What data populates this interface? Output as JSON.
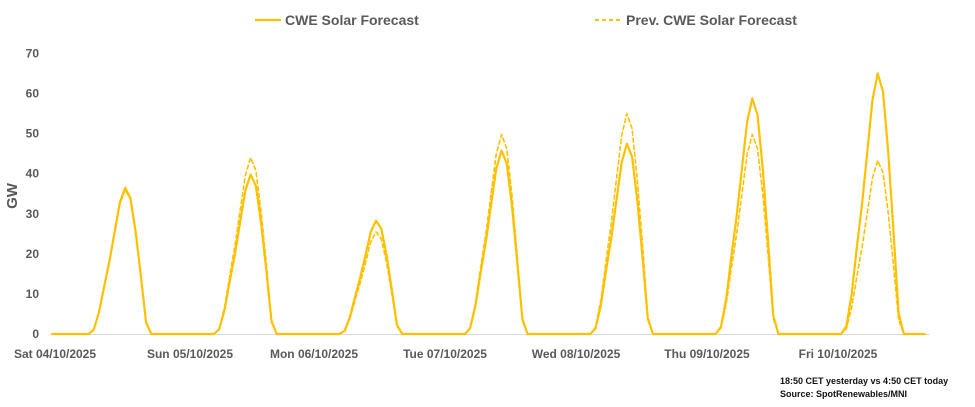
{
  "chart_data": {
    "type": "line",
    "title": "",
    "xlabel": "",
    "ylabel": "GW",
    "ylim": [
      0,
      70
    ],
    "yticks": [
      0,
      10,
      20,
      30,
      40,
      50,
      60,
      70
    ],
    "grid": false,
    "legend_position": "top",
    "x_resolution": "hourly",
    "x_tick_labels": [
      "Sat 04/10/2025",
      "Sun 05/10/2025",
      "Mon 06/10/2025",
      "Tue 07/10/2025",
      "Wed 08/10/2025",
      "Thu 09/10/2025",
      "Fri 10/10/2025"
    ],
    "series": [
      {
        "name": "CWE Solar Forecast",
        "color": "#FFC000",
        "style": "solid",
        "values": [
          0,
          0,
          0,
          0,
          0,
          0,
          0,
          0,
          1.1,
          5.5,
          12.0,
          18.3,
          25.6,
          32.9,
          36.5,
          33.9,
          25.6,
          14.6,
          2.9,
          0,
          0,
          0,
          0,
          0,
          0,
          0,
          0,
          0,
          0,
          0,
          0,
          0,
          1.2,
          6.0,
          13.1,
          19.9,
          27.9,
          35.8,
          39.8,
          37.0,
          27.9,
          15.9,
          3.2,
          0,
          0,
          0,
          0,
          0,
          0,
          0,
          0,
          0,
          0,
          0,
          0,
          0,
          0.8,
          4.2,
          9.3,
          14.2,
          19.8,
          25.5,
          28.3,
          26.3,
          19.8,
          11.3,
          2.3,
          0,
          0,
          0,
          0,
          0,
          0,
          0,
          0,
          0,
          0,
          0,
          0,
          0,
          1.4,
          6.9,
          15.1,
          22.9,
          32.1,
          41.2,
          45.8,
          42.6,
          32.1,
          18.3,
          3.7,
          0,
          0,
          0,
          0,
          0,
          0,
          0,
          0,
          0,
          0,
          0,
          0,
          0,
          1.4,
          7.1,
          15.7,
          23.8,
          33.3,
          42.8,
          47.5,
          44.2,
          33.3,
          19.0,
          3.8,
          0,
          0,
          0,
          0,
          0,
          0,
          0,
          0,
          0,
          0,
          0,
          0,
          0,
          1.8,
          8.8,
          19.4,
          29.4,
          41.2,
          52.9,
          58.8,
          54.7,
          41.2,
          23.5,
          4.7,
          0,
          0,
          0,
          0,
          0,
          0,
          0,
          0,
          0,
          0,
          0,
          0,
          0,
          2.0,
          9.8,
          21.5,
          32.5,
          45.5,
          58.5,
          65.0,
          60.5,
          45.5,
          26.0,
          5.2,
          0,
          0,
          0,
          0,
          0
        ]
      },
      {
        "name": "Prev. CWE Solar Forecast",
        "color": "#FFC000",
        "style": "dashed",
        "values": [
          0,
          0,
          0,
          0,
          0,
          0,
          0,
          0,
          1.1,
          5.4,
          11.9,
          18.0,
          25.2,
          32.4,
          36.0,
          33.5,
          25.2,
          14.4,
          2.9,
          0,
          0,
          0,
          0,
          0,
          0,
          0,
          0,
          0,
          0,
          0,
          0,
          0,
          1.3,
          6.6,
          14.5,
          22.0,
          30.8,
          39.6,
          44.0,
          40.9,
          30.8,
          17.6,
          3.5,
          0,
          0,
          0,
          0,
          0,
          0,
          0,
          0,
          0,
          0,
          0,
          0,
          0,
          0.8,
          3.8,
          8.4,
          12.8,
          17.9,
          23.0,
          25.5,
          23.7,
          17.9,
          10.2,
          2.0,
          0,
          0,
          0,
          0,
          0,
          0,
          0,
          0,
          0,
          0,
          0,
          0,
          0,
          1.5,
          7.5,
          16.4,
          24.9,
          34.9,
          44.8,
          49.8,
          46.3,
          34.9,
          19.9,
          4.0,
          0,
          0,
          0,
          0,
          0,
          0,
          0,
          0,
          0,
          0,
          0,
          0,
          0,
          1.7,
          8.3,
          18.2,
          27.5,
          38.5,
          49.5,
          55.0,
          51.2,
          38.5,
          22.0,
          4.4,
          0,
          0,
          0,
          0,
          0,
          0,
          0,
          0,
          0,
          0,
          0,
          0,
          0,
          1.5,
          7.5,
          16.4,
          24.9,
          34.9,
          44.8,
          49.8,
          46.3,
          34.9,
          19.9,
          4.0,
          0,
          0,
          0,
          0,
          0,
          0,
          0,
          0,
          0,
          0,
          0,
          0,
          0,
          1.3,
          6.5,
          14.3,
          21.7,
          30.3,
          39.0,
          43.3,
          40.3,
          30.3,
          17.3,
          3.5,
          0,
          0,
          0,
          0,
          0
        ]
      }
    ]
  },
  "notes": {
    "timing": "18:50 CET yesterday vs  4:50 CET today",
    "source": "Source: SpotRenewables/MNI"
  }
}
